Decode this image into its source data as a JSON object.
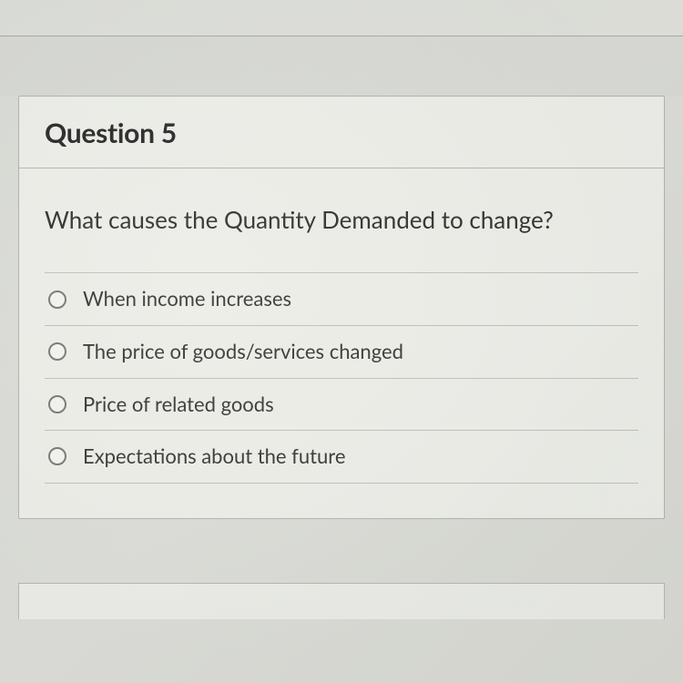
{
  "question": {
    "title": "Question 5",
    "prompt": "What causes the Quantity Demanded to change?",
    "options": [
      {
        "label": "When income increases"
      },
      {
        "label": "The price of goods/services changed"
      },
      {
        "label": "Price of related goods"
      },
      {
        "label": "Expectations about the future"
      }
    ]
  },
  "styling": {
    "background_color": "#d9dbD5",
    "card_background": "#f6f6f2",
    "border_color": "#8a8a85",
    "title_fontsize": 30,
    "prompt_fontsize": 26,
    "option_fontsize": 22,
    "title_color": "#2a2a2a",
    "text_color": "#333333",
    "option_text_color": "#3a3a38",
    "radio_border_color": "#7a7a76"
  }
}
